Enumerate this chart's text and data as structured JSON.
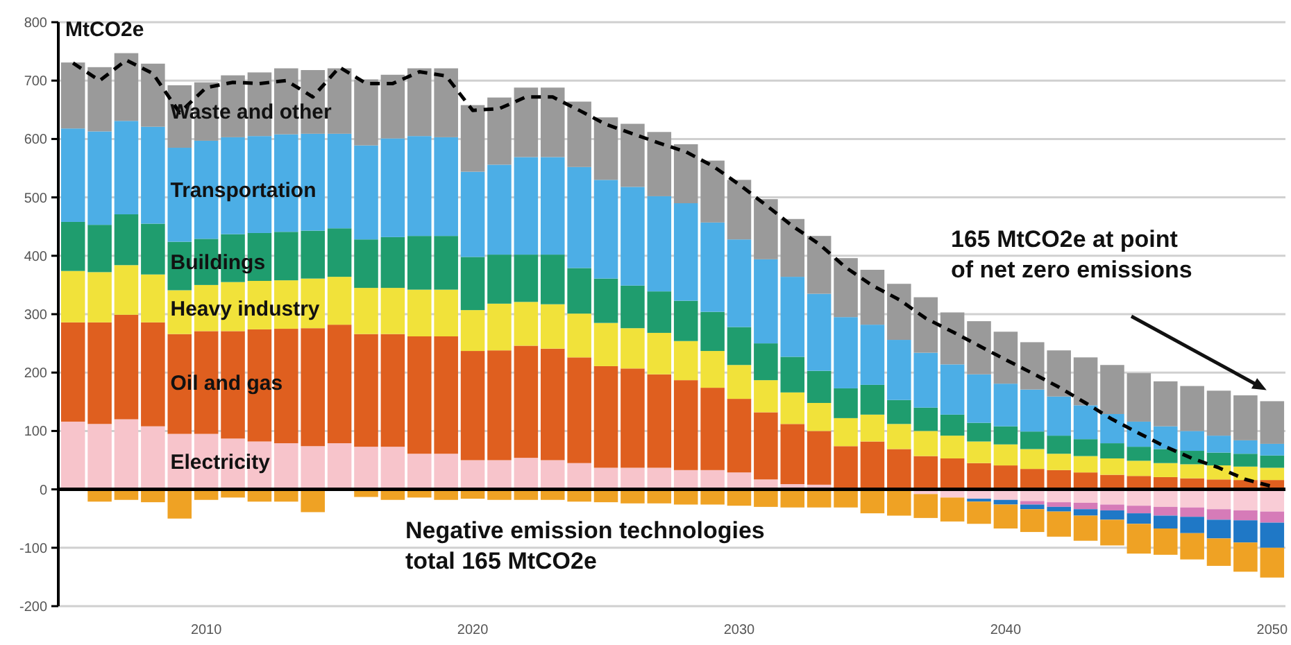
{
  "chart_data": {
    "type": "bar",
    "stacked": true,
    "ylabel": "MtCO2e",
    "categories": [
      null,
      null,
      null,
      null,
      null,
      "2010",
      null,
      null,
      null,
      null,
      null,
      null,
      null,
      null,
      null,
      "2020",
      null,
      null,
      null,
      null,
      null,
      null,
      null,
      null,
      null,
      "2030",
      null,
      null,
      null,
      null,
      null,
      null,
      null,
      null,
      null,
      "2040",
      null,
      null,
      null,
      null,
      null,
      null,
      null,
      null,
      null,
      "2050"
    ],
    "ylim": [
      -200,
      800
    ],
    "yticks": [
      -200,
      -100,
      0,
      100,
      200,
      300,
      400,
      500,
      600,
      700,
      800
    ],
    "grid": "y",
    "legend": false,
    "series": [
      {
        "name": "Electricity",
        "color": "#f7c4cb",
        "values": [
          116,
          112,
          120,
          108,
          95,
          95,
          87,
          82,
          79,
          74,
          79,
          73,
          73,
          61,
          61,
          50,
          50,
          54,
          50,
          45,
          37,
          37,
          37,
          33,
          33,
          29,
          17,
          9,
          8,
          null,
          0,
          0,
          0,
          0,
          0,
          0,
          0,
          0,
          0,
          0,
          0,
          0,
          0,
          0,
          0,
          0
        ]
      },
      {
        "name": "Oil and gas",
        "color": "#df5f1f",
        "values": [
          170,
          174,
          179,
          178,
          171,
          176,
          184,
          192,
          196,
          202,
          203,
          193,
          193,
          201,
          201,
          187,
          188,
          192,
          191,
          181,
          174,
          170,
          160,
          154,
          141,
          126,
          115,
          103,
          92,
          74,
          82,
          69,
          57,
          53,
          45,
          41,
          35,
          33,
          29,
          25,
          23,
          21,
          19,
          17,
          16,
          16
        ]
      },
      {
        "name": "Heavy industry",
        "color": "#f1e23a",
        "values": [
          88,
          86,
          85,
          82,
          75,
          79,
          84,
          83,
          83,
          85,
          82,
          79,
          79,
          80,
          80,
          70,
          80,
          75,
          76,
          75,
          74,
          69,
          71,
          67,
          63,
          58,
          55,
          54,
          48,
          48,
          46,
          43,
          43,
          39,
          37,
          36,
          34,
          28,
          28,
          28,
          26,
          24,
          24,
          24,
          23,
          21
        ]
      },
      {
        "name": "Buildings",
        "color": "#1f9d6e",
        "values": [
          84,
          81,
          87,
          87,
          83,
          79,
          82,
          82,
          83,
          82,
          83,
          83,
          87,
          92,
          92,
          91,
          84,
          81,
          85,
          78,
          76,
          73,
          71,
          69,
          67,
          65,
          63,
          61,
          55,
          51,
          51,
          41,
          40,
          36,
          32,
          31,
          30,
          31,
          29,
          26,
          24,
          24,
          23,
          22,
          22,
          21
        ]
      },
      {
        "name": "Transportation",
        "color": "#4caee6",
        "values": [
          160,
          160,
          160,
          166,
          161,
          168,
          166,
          166,
          167,
          166,
          162,
          161,
          169,
          171,
          169,
          146,
          154,
          167,
          167,
          173,
          169,
          169,
          163,
          167,
          153,
          150,
          144,
          137,
          132,
          122,
          103,
          103,
          94,
          86,
          83,
          73,
          72,
          67,
          58,
          50,
          43,
          39,
          34,
          29,
          23,
          20
        ]
      },
      {
        "name": "Waste and other",
        "color": "#9a9a9a",
        "values": [
          113,
          110,
          116,
          108,
          107,
          100,
          106,
          109,
          113,
          109,
          112,
          113,
          109,
          116,
          118,
          114,
          115,
          119,
          119,
          112,
          107,
          108,
          110,
          101,
          106,
          102,
          103,
          99,
          99,
          101,
          94,
          96,
          95,
          89,
          91,
          89,
          81,
          79,
          82,
          84,
          83,
          77,
          77,
          77,
          77,
          73
        ]
      },
      {
        "color": "#f9ccd6",
        "values": [
          null,
          null,
          null,
          null,
          null,
          null,
          null,
          null,
          null,
          null,
          null,
          null,
          null,
          null,
          null,
          null,
          null,
          null,
          null,
          null,
          null,
          null,
          null,
          null,
          null,
          null,
          null,
          null,
          null,
          null,
          null,
          null,
          -8,
          -14,
          -16,
          -18,
          -20,
          -22,
          -23,
          -26,
          -28,
          -30,
          -31,
          -34,
          -36,
          -38
        ]
      },
      {
        "color": "#d67bb8",
        "values": [
          null,
          null,
          null,
          null,
          null,
          null,
          null,
          null,
          null,
          null,
          null,
          null,
          null,
          null,
          null,
          null,
          null,
          null,
          null,
          null,
          null,
          null,
          null,
          null,
          null,
          null,
          null,
          null,
          null,
          null,
          null,
          null,
          null,
          null,
          null,
          null,
          -6,
          -8,
          -11,
          -10,
          -13,
          -15,
          -16,
          -18,
          -17,
          -19
        ]
      },
      {
        "color": "#1f78c6",
        "values": [
          null,
          null,
          null,
          null,
          null,
          null,
          null,
          null,
          null,
          null,
          null,
          null,
          null,
          null,
          null,
          null,
          null,
          null,
          null,
          null,
          null,
          null,
          null,
          null,
          null,
          null,
          null,
          null,
          null,
          null,
          null,
          null,
          null,
          null,
          -5,
          -8,
          -8,
          -8,
          -11,
          -16,
          -18,
          -22,
          -28,
          -32,
          -38,
          -43
        ]
      },
      {
        "color": "#efa224",
        "values": [
          0,
          -21,
          -18,
          -22,
          -50,
          -18,
          -14,
          -21,
          -21,
          -39,
          0,
          -13,
          -18,
          -14,
          -18,
          -16,
          -18,
          -18,
          -18,
          -21,
          -22,
          -24,
          -24,
          -26,
          -26,
          -28,
          -30,
          -31,
          -31,
          -31,
          -41,
          -45,
          -41,
          -41,
          -38,
          -41,
          -39,
          -43,
          -43,
          -44,
          -51,
          -45,
          -45,
          -47,
          -50,
          -51
        ]
      },
      {
        "type": "line",
        "color": "#000000",
        "line_style": "dashed",
        "marker": "none",
        "values": [
          730,
          700,
          735,
          712,
          645,
          688,
          697,
          695,
          700,
          672,
          723,
          695,
          695,
          715,
          708,
          649,
          652,
          672,
          672,
          649,
          625,
          609,
          593,
          578,
          554,
          522,
          487,
          451,
          420,
          380,
          349,
          325,
          293,
          270,
          246,
          222,
          199,
          175,
          148,
          120,
          96,
          73,
          53,
          37,
          17,
          5
        ]
      }
    ],
    "annotations": [
      "165 MtCO2e at point of net zero emissions",
      "Negative emission technologies total 165 MtCO2e"
    ]
  }
}
